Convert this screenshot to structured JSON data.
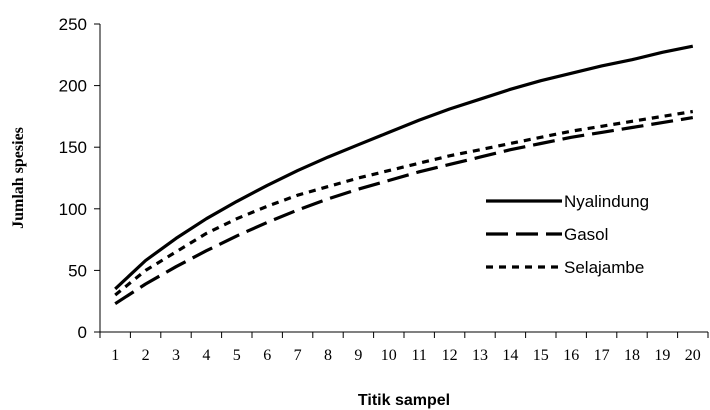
{
  "chart_data": {
    "type": "line",
    "xlabel": "Titik sampel",
    "ylabel": "Jumlah spesies",
    "x": [
      1,
      2,
      3,
      4,
      5,
      6,
      7,
      8,
      9,
      10,
      11,
      12,
      13,
      14,
      15,
      16,
      17,
      18,
      19,
      20
    ],
    "ylim": [
      0,
      250
    ],
    "yticks": [
      0,
      50,
      100,
      150,
      200,
      250
    ],
    "grid": false,
    "legend_position": "right",
    "series": [
      {
        "name": "Nyalindung",
        "line_style": "solid",
        "color": "#000000",
        "values": [
          35,
          58,
          76,
          92,
          106,
          119,
          131,
          142,
          152,
          162,
          172,
          181,
          189,
          197,
          204,
          210,
          216,
          221,
          227,
          232
        ]
      },
      {
        "name": "Gasol",
        "line_style": "long-dash",
        "color": "#000000",
        "values": [
          23,
          39,
          53,
          66,
          78,
          89,
          99,
          108,
          116,
          123,
          130,
          136,
          142,
          148,
          153,
          158,
          162,
          166,
          170,
          174
        ]
      },
      {
        "name": "Selajambe",
        "line_style": "short-dash",
        "color": "#000000",
        "values": [
          30,
          50,
          65,
          80,
          92,
          102,
          111,
          118,
          125,
          131,
          137,
          143,
          148,
          153,
          158,
          163,
          167,
          171,
          175,
          179
        ]
      }
    ]
  }
}
